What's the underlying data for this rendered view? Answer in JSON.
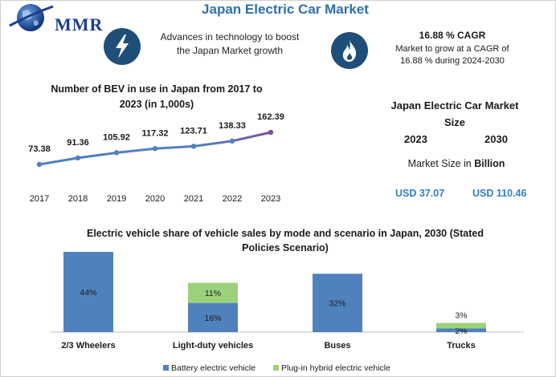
{
  "header": {
    "logo_text": "MMR",
    "title": "Japan Electric Car Market"
  },
  "info": {
    "left_text_line1": "Advances in technology to boost",
    "left_text_line2": "the Japan Market growth",
    "right_title": "16.88 % CAGR",
    "right_text_line1": "Market to grow at a CAGR of",
    "right_text_line2": "16.88 % during 2024-2030",
    "left_icon": "lightning-bolt-icon",
    "right_icon": "flame-icon"
  },
  "market_size": {
    "title_line1": "Japan Electric Car Market",
    "title_line2": "Size",
    "year_a": "2023",
    "year_b": "2030",
    "label_prefix": "Market Size in ",
    "label_unit": "Billion",
    "value_a": "USD 37.07",
    "value_b": "USD 110.46"
  },
  "colors": {
    "title_blue": "#2f6fb0",
    "icon_navy": "#1f4e79",
    "line_color": "#4f81bd",
    "line_end_color": "#7a4fa0",
    "bev_color": "#4f81bd",
    "phev_color": "#9bd17b",
    "usd_blue": "#2f7fc8"
  },
  "chart_data": [
    {
      "type": "line",
      "title_line1": "Number of BEV in use in Japan from 2017 to",
      "title_line2": "2023 (in 1,000s)",
      "x": [
        "2017",
        "2018",
        "2019",
        "2020",
        "2021",
        "2022",
        "2023"
      ],
      "values": [
        73.38,
        91.36,
        105.92,
        117.32,
        123.71,
        138.33,
        162.39
      ],
      "labels": [
        "73.38",
        "91.36",
        "105.92",
        "117.32",
        "123.71",
        "138.33",
        "162.39"
      ],
      "ylim": [
        0,
        200
      ]
    },
    {
      "type": "bar",
      "stacked": true,
      "title_line1": "Electric vehicle share of vehicle sales by mode and scenario in Japan, 2030 (Stated",
      "title_line2": "Policies Scenario)",
      "categories": [
        "2/3 Wheelers",
        "Light-duty vehicles",
        "Buses",
        "Trucks"
      ],
      "series": [
        {
          "name": "Battery electric vehicle",
          "values": [
            44,
            16,
            32,
            2
          ],
          "labels": [
            "44%",
            "16%",
            "32%",
            "2%"
          ]
        },
        {
          "name": "Plug-in hybrid electric vehicle",
          "values": [
            0,
            11,
            0,
            3
          ],
          "labels": [
            "",
            "11%",
            "",
            "3%"
          ]
        }
      ],
      "ylim": [
        0,
        44
      ],
      "legend": "bottom"
    }
  ]
}
